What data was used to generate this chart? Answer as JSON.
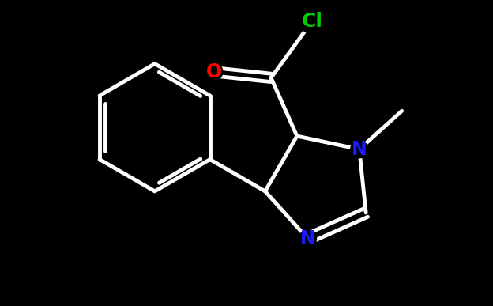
{
  "background_color": "#000000",
  "bond_color": "#ffffff",
  "bond_width": 3.5,
  "atom_colors": {
    "N": "#1a1aff",
    "O": "#ff0000",
    "Cl": "#00cc00"
  },
  "label_fontsize": 17,
  "figsize": [
    6.24,
    3.87
  ],
  "dpi": 100,
  "xlim": [
    -3.8,
    3.8
  ],
  "ylim": [
    -3.0,
    3.0
  ]
}
